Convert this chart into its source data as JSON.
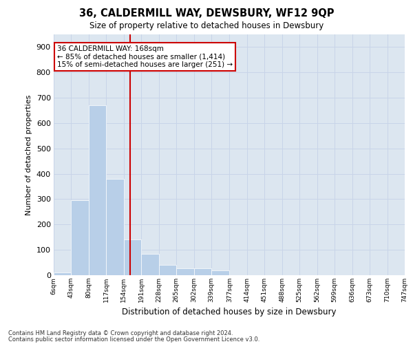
{
  "title": "36, CALDERMILL WAY, DEWSBURY, WF12 9QP",
  "subtitle": "Size of property relative to detached houses in Dewsbury",
  "xlabel": "Distribution of detached houses by size in Dewsbury",
  "ylabel": "Number of detached properties",
  "bar_color": "#b8cfe8",
  "bar_edge_color": "#b8cfe8",
  "grid_color": "#c8d4e8",
  "bg_color": "#dce6f0",
  "annotation_box_color": "#cc0000",
  "vline_color": "#cc0000",
  "vline_x": 168,
  "bin_edges": [
    6,
    43,
    80,
    117,
    154,
    191,
    228,
    265,
    302,
    339,
    377,
    414,
    451,
    488,
    525,
    562,
    599,
    636,
    673,
    710,
    747
  ],
  "bar_heights": [
    10,
    295,
    670,
    380,
    140,
    85,
    40,
    28,
    28,
    18,
    0,
    0,
    0,
    0,
    0,
    0,
    0,
    0,
    0,
    0
  ],
  "ylim": [
    0,
    950
  ],
  "yticks": [
    0,
    100,
    200,
    300,
    400,
    500,
    600,
    700,
    800,
    900
  ],
  "annotation_line1": "36 CALDERMILL WAY: 168sqm",
  "annotation_line2": "← 85% of detached houses are smaller (1,414)",
  "annotation_line3": "15% of semi-detached houses are larger (251) →",
  "footnote1": "Contains HM Land Registry data © Crown copyright and database right 2024.",
  "footnote2": "Contains public sector information licensed under the Open Government Licence v3.0."
}
